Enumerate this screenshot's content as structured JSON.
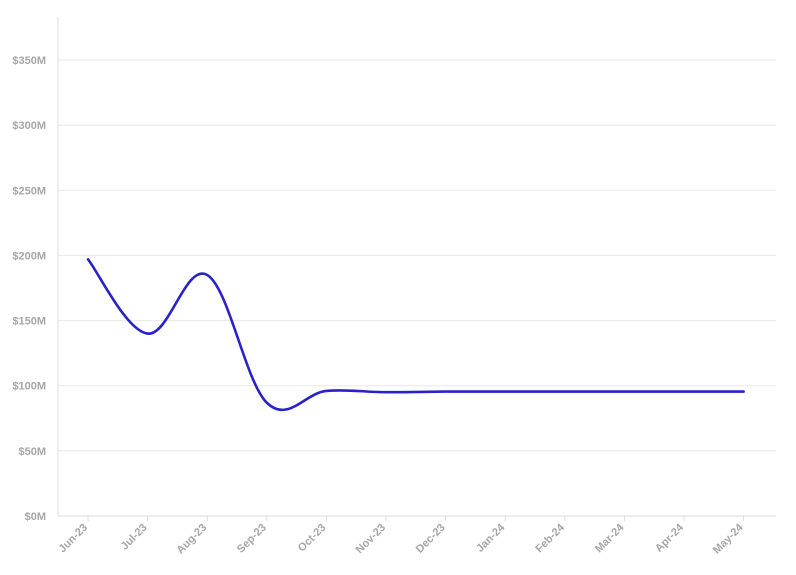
{
  "chart_data": {
    "type": "line",
    "x": [
      "Jun-23",
      "Jul-23",
      "Aug-23",
      "Sep-23",
      "Oct-23",
      "Nov-23",
      "Dec-23",
      "Jan-24",
      "Feb-24",
      "Mar-24",
      "Apr-24",
      "May-24"
    ],
    "series": [
      {
        "values": [
          197,
          140,
          185,
          87,
          96,
          95,
          95.5,
          95.5,
          95.5,
          95.5,
          95.5,
          95.5
        ],
        "color": "#2a22c8"
      }
    ],
    "y_unit_prefix": "$",
    "y_unit_suffix": "M",
    "ylim": [
      0,
      350
    ],
    "yticks": [
      0,
      50,
      100,
      150,
      200,
      250,
      300,
      350
    ],
    "ytick_labels": [
      "$0M",
      "$50M",
      "$100M",
      "$150M",
      "$200M",
      "$250M",
      "$300M",
      "$350M"
    ],
    "grid": true,
    "legend": "none"
  }
}
